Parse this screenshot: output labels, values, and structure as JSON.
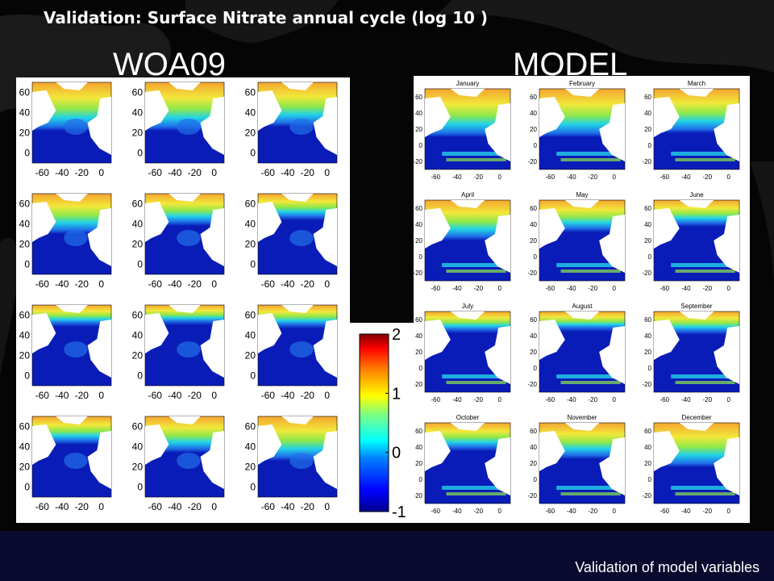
{
  "slide": {
    "title": "Validation: Surface Nitrate annual cycle (log 10 )",
    "left_label": "WOA09",
    "right_label": "MODEL",
    "footer": "Validation of model variables"
  },
  "woa": {
    "y_ticks": [
      "60",
      "40",
      "20",
      "0"
    ],
    "x_ticks": [
      "-60",
      "-40",
      "-20",
      "0"
    ],
    "panel_count": 12
  },
  "model": {
    "months": [
      "January",
      "February",
      "March",
      "April",
      "May",
      "June",
      "July",
      "August",
      "September",
      "October",
      "November",
      "December"
    ],
    "y_ticks": [
      "60",
      "40",
      "20",
      "0",
      "-20"
    ],
    "x_ticks": [
      "-60",
      "-40",
      "-20",
      "0"
    ]
  },
  "colorbar": {
    "ticks": [
      "2",
      "1",
      "0",
      "-1"
    ],
    "range": [
      -1,
      2
    ]
  },
  "colors": {
    "ocean_low": "#0a1cb8",
    "ocean_mid": "#1f6fe8",
    "cyan": "#22d3e8",
    "green": "#8fe84a",
    "yellow": "#f2e83a",
    "orange": "#f4a430",
    "land": "#ffffff",
    "footer_bg": "#0a0a2e"
  }
}
